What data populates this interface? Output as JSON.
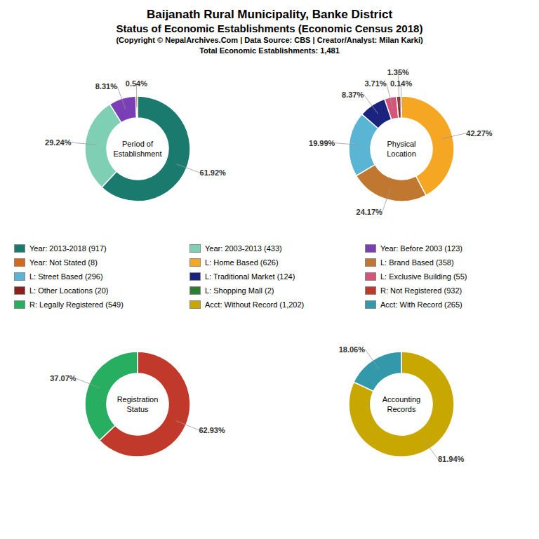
{
  "title": "Baijanath Rural Municipality, Banke District",
  "subtitle": "Status of Economic Establishments (Economic Census 2018)",
  "annotations": [
    "(Copyright © NepalArchives.Com | Data Source: CBS | Creator/Analyst: Milan Karki)",
    "Total Economic Establishments: 1,481"
  ],
  "chart_data": [
    {
      "type": "pie",
      "title": "Period of\nEstablishment",
      "categories": [
        "Year: 2013-2018 (917)",
        "Year: 2003-2013 (433)",
        "Year: Before 2003 (123)",
        "Year: Not Stated (8)"
      ],
      "values": [
        61.92,
        29.24,
        8.31,
        0.54
      ],
      "value_labels": [
        "61.92%",
        "29.24%",
        "8.31%",
        "0.54%"
      ],
      "colors": [
        "#1a7a6e",
        "#7ecfb3",
        "#7b3fb5",
        "#d2691e"
      ],
      "data_labels": true
    },
    {
      "type": "pie",
      "title": "Physical\nLocation",
      "categories": [
        "L: Home Based (626)",
        "L: Brand Based (358)",
        "L: Street Based (296)",
        "L: Traditional Market (124)",
        "L: Exclusive Building (55)",
        "L: Other Locations (20)",
        "L: Shopping Mall (2)"
      ],
      "values": [
        42.27,
        24.17,
        19.99,
        8.37,
        3.71,
        1.35,
        0.14
      ],
      "value_labels": [
        "42.27%",
        "24.17%",
        "19.99%",
        "8.37%",
        "3.71%",
        "1.35%",
        "0.14%"
      ],
      "colors": [
        "#f5a623",
        "#c07830",
        "#5ab4d4",
        "#1a237e",
        "#d4547a",
        "#8b2020",
        "#2e7d32"
      ],
      "data_labels": true
    },
    {
      "type": "pie",
      "title": "Registration\nStatus",
      "categories": [
        "R: Not Registered (932)",
        "R: Legally Registered (549)"
      ],
      "values": [
        62.93,
        37.07
      ],
      "value_labels": [
        "62.93%",
        "37.07%"
      ],
      "colors": [
        "#c0392b",
        "#27ae60"
      ],
      "data_labels": true
    },
    {
      "type": "pie",
      "title": "Accounting\nRecords",
      "categories": [
        "Acct: Without Record (1,202)",
        "Acct: With Record (265)"
      ],
      "values": [
        81.94,
        18.06
      ],
      "value_labels": [
        "81.94%",
        "18.06%"
      ],
      "colors": [
        "#c8a800",
        "#3399aa"
      ],
      "data_labels": true
    }
  ]
}
